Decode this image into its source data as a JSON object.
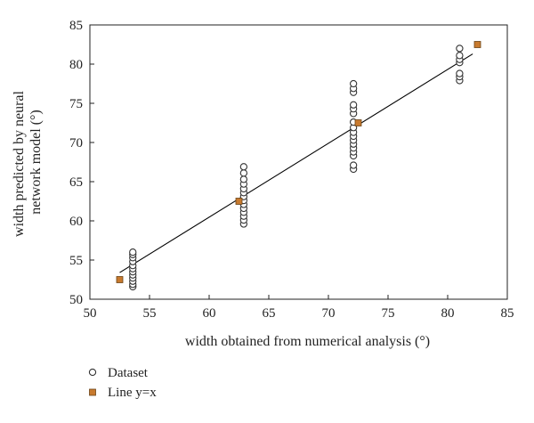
{
  "chart_data": {
    "type": "scatter",
    "xlabel": "width obtained from numerical analysis (°)",
    "ylabel": [
      "width predicted by neural",
      "network model (°)"
    ],
    "xlim": [
      50,
      85
    ],
    "ylim": [
      50,
      85
    ],
    "xticks": [
      50,
      55,
      60,
      65,
      70,
      75,
      80,
      85
    ],
    "yticks": [
      50,
      55,
      60,
      65,
      70,
      75,
      80,
      85
    ],
    "grid": false,
    "legend_position": "bottom-left, below plot",
    "series": [
      {
        "name": "Dataset",
        "marker": "open-circle",
        "color": "#333333",
        "points": [
          [
            53.6,
            51.6
          ],
          [
            53.6,
            51.9
          ],
          [
            53.6,
            52.3
          ],
          [
            53.6,
            52.7
          ],
          [
            53.6,
            53.1
          ],
          [
            53.6,
            53.5
          ],
          [
            53.6,
            53.9
          ],
          [
            53.6,
            54.3
          ],
          [
            53.6,
            54.8
          ],
          [
            53.6,
            55.3
          ],
          [
            53.6,
            55.7
          ],
          [
            53.6,
            56.0
          ],
          [
            62.9,
            59.6
          ],
          [
            62.9,
            60.1
          ],
          [
            62.9,
            60.6
          ],
          [
            62.9,
            61.1
          ],
          [
            62.9,
            61.6
          ],
          [
            62.9,
            62.1
          ],
          [
            62.9,
            62.6
          ],
          [
            62.9,
            63.1
          ],
          [
            62.9,
            63.6
          ],
          [
            62.9,
            64.1
          ],
          [
            62.9,
            64.7
          ],
          [
            62.9,
            65.3
          ],
          [
            62.9,
            66.1
          ],
          [
            62.9,
            66.9
          ],
          [
            72.1,
            66.6
          ],
          [
            72.1,
            67.1
          ],
          [
            72.1,
            68.3
          ],
          [
            72.1,
            68.8
          ],
          [
            72.1,
            69.3
          ],
          [
            72.1,
            69.8
          ],
          [
            72.1,
            70.3
          ],
          [
            72.1,
            70.8
          ],
          [
            72.1,
            71.3
          ],
          [
            72.1,
            71.9
          ],
          [
            72.1,
            72.6
          ],
          [
            72.1,
            73.7
          ],
          [
            72.1,
            74.3
          ],
          [
            72.1,
            74.8
          ],
          [
            72.1,
            76.4
          ],
          [
            72.1,
            76.9
          ],
          [
            72.1,
            77.5
          ],
          [
            81.0,
            77.9
          ],
          [
            81.0,
            78.4
          ],
          [
            81.0,
            78.8
          ],
          [
            81.0,
            80.2
          ],
          [
            81.0,
            80.6
          ],
          [
            81.0,
            81.1
          ],
          [
            81.0,
            82.0
          ]
        ]
      },
      {
        "name": "Line y=x",
        "marker": "filled-square",
        "color": "#c87a2e",
        "points": [
          [
            52.5,
            52.5
          ],
          [
            62.5,
            62.5
          ],
          [
            72.5,
            72.5
          ],
          [
            82.5,
            82.5
          ]
        ]
      }
    ],
    "fit_line": {
      "from": [
        52.5,
        53.4
      ],
      "to": [
        82.1,
        81.3
      ],
      "color": "#000000"
    }
  }
}
